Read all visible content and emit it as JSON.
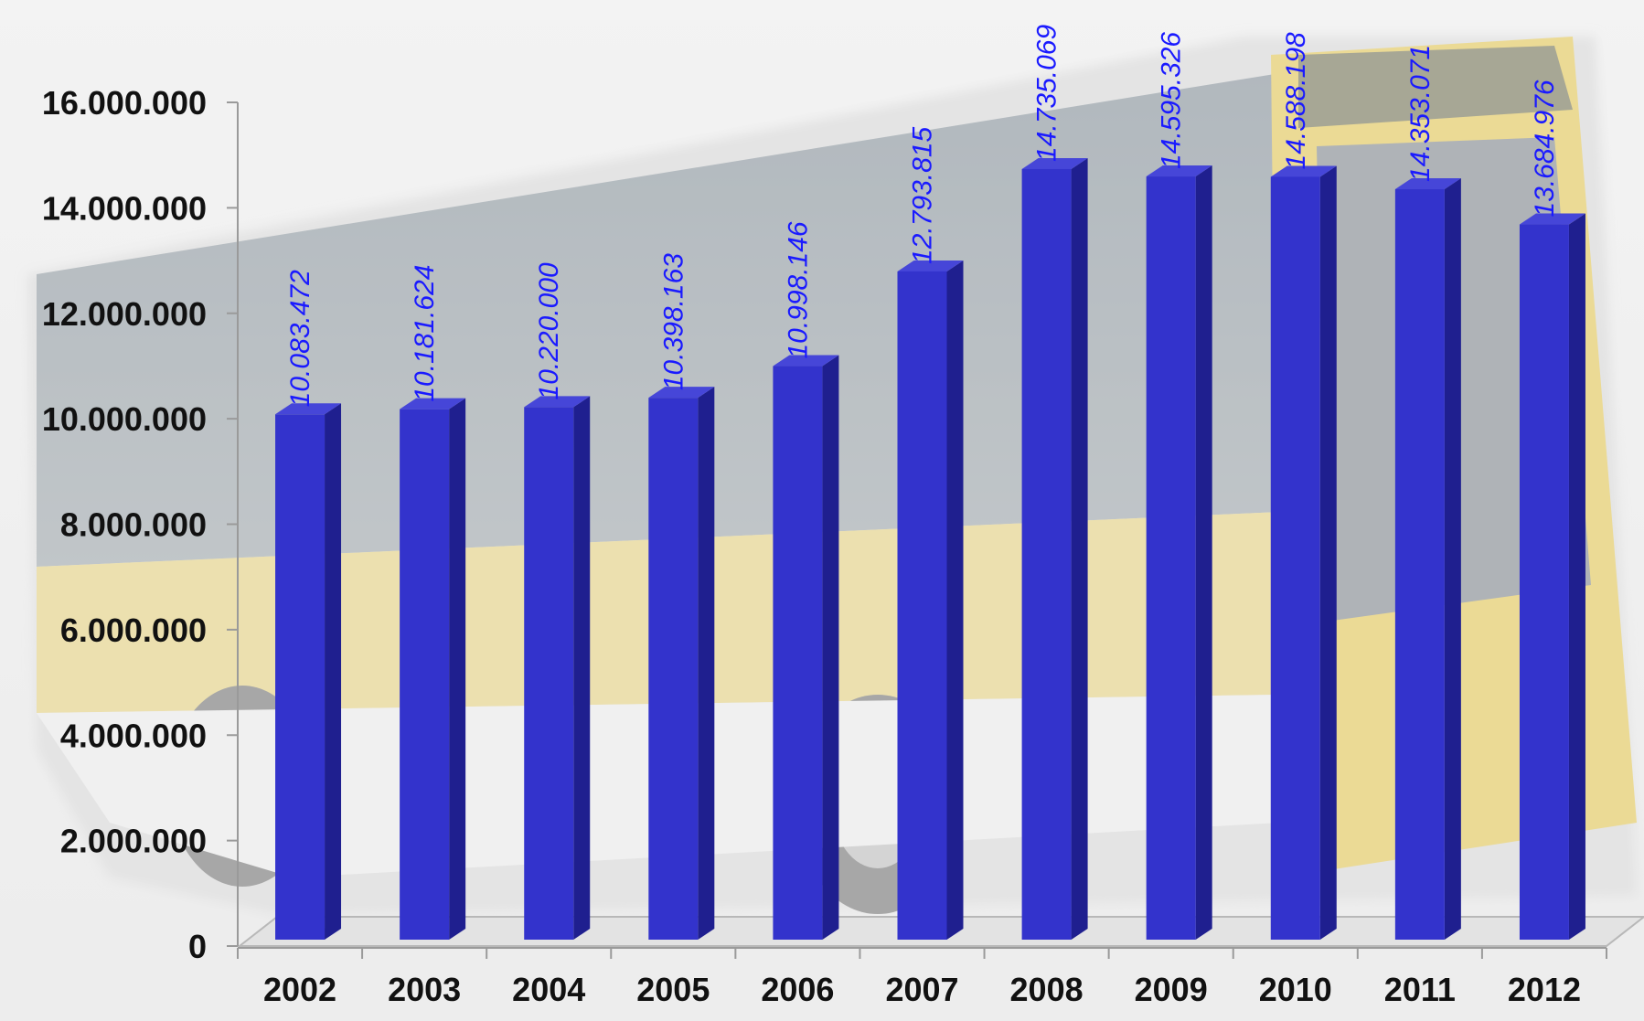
{
  "chart_data": {
    "type": "bar",
    "title": "",
    "xlabel": "",
    "ylabel": "",
    "categories": [
      "2002",
      "2003",
      "2004",
      "2005",
      "2006",
      "2007",
      "2008",
      "2009",
      "2010",
      "2011",
      "2012"
    ],
    "values": [
      10083472,
      10181624,
      10220000,
      10398163,
      10998146,
      12793815,
      14735069,
      14595326,
      14588198,
      14353071,
      13684976
    ],
    "data_labels": [
      "10.083.472",
      "10.181.624",
      "10.220.000",
      "10.398.163",
      "10.998.146",
      "12.793.815",
      "14.735.069",
      "14.595.326",
      "14.588.198",
      "14.353.071",
      "13.684.976"
    ],
    "ylim": [
      0,
      16000000
    ],
    "yticks": [
      0,
      2000000,
      4000000,
      6000000,
      8000000,
      10000000,
      12000000,
      14000000,
      16000000
    ],
    "ytick_labels": [
      "0",
      "2.000.000",
      "4.000.000",
      "6.000.000",
      "8.000.000",
      "10.000.000",
      "12.000.000",
      "14.000.000",
      "16.000.000"
    ],
    "grid": false,
    "legend": "none",
    "style": "3d-column",
    "background": "faded photo of a yellow city bus",
    "colors": {
      "bar_front": "#3333cc",
      "bar_side": "#1f1f8f",
      "bar_top": "#4646d8",
      "data_label": "#1a1aff"
    }
  }
}
